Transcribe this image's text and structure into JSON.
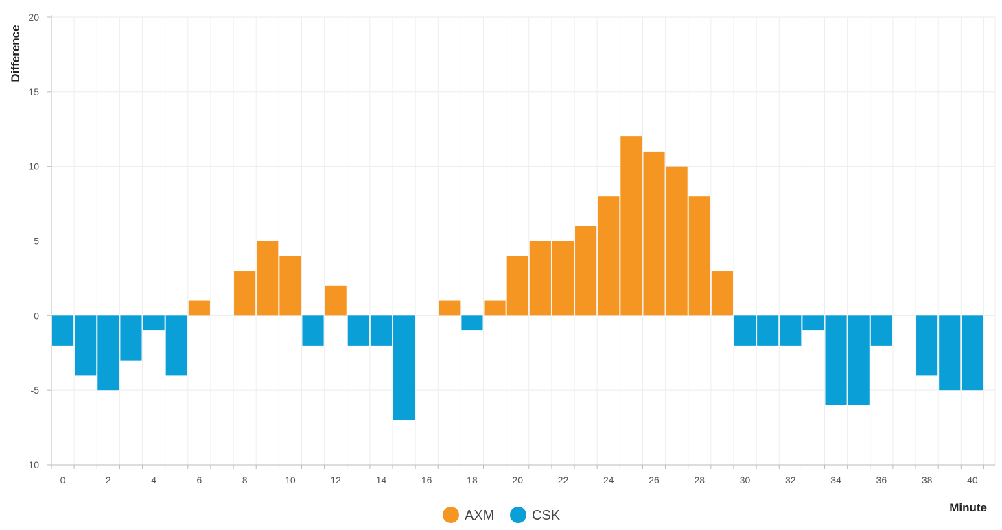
{
  "chart_data": {
    "type": "bar",
    "title": "",
    "xlabel": "Minute",
    "ylabel": "Difference",
    "ylim": [
      -10,
      20
    ],
    "xlim": [
      -0.5,
      41
    ],
    "ytick_values": [
      -10,
      -5,
      0,
      5,
      10,
      15,
      20
    ],
    "ytick_labels": [
      "-10",
      "-5",
      "0",
      "5",
      "10",
      "15",
      "20"
    ],
    "xtick_values": [
      0,
      2,
      4,
      6,
      8,
      10,
      12,
      14,
      16,
      18,
      20,
      22,
      24,
      26,
      28,
      30,
      32,
      34,
      36,
      38,
      40
    ],
    "xtick_labels": [
      "0",
      "2",
      "4",
      "6",
      "8",
      "10",
      "12",
      "14",
      "16",
      "18",
      "20",
      "22",
      "24",
      "26",
      "28",
      "30",
      "32",
      "34",
      "36",
      "38",
      "40"
    ],
    "grid": true,
    "legend_position": "bottom-center",
    "x": [
      0,
      1,
      2,
      3,
      4,
      5,
      6,
      7,
      8,
      9,
      10,
      11,
      12,
      13,
      14,
      15,
      16,
      17,
      18,
      19,
      20,
      21,
      22,
      23,
      24,
      25,
      26,
      27,
      28,
      29,
      30,
      31,
      32,
      33,
      34,
      35,
      36,
      37,
      38,
      39,
      40
    ],
    "values": [
      -2,
      -4,
      -5,
      -3,
      -1,
      -4,
      1,
      0,
      3,
      5,
      4,
      -2,
      2,
      -2,
      -2,
      -7,
      0,
      1,
      -1,
      1,
      4,
      5,
      5,
      6,
      8,
      12,
      11,
      10,
      8,
      3,
      -2,
      -2,
      -2,
      -1,
      -6,
      -6,
      -2,
      0,
      -4,
      -5,
      -5
    ],
    "series": [
      {
        "name": "AXM",
        "color": "#f59622",
        "rule": "positive values"
      },
      {
        "name": "CSK",
        "color": "#0b9fd8",
        "rule": "negative values"
      }
    ]
  }
}
